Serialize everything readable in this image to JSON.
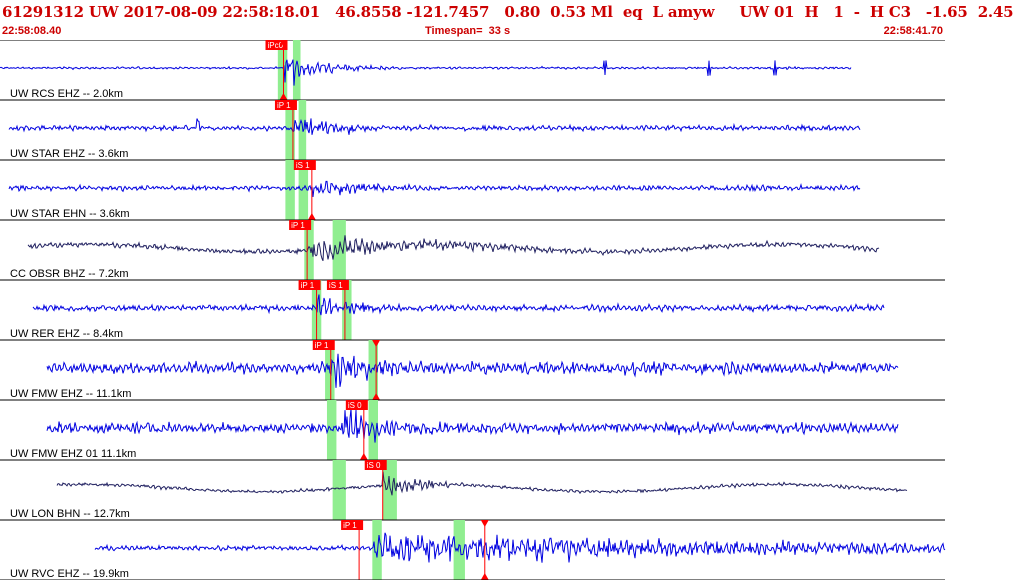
{
  "header": {
    "title": "61291312 UW 2017-08-09 22:58:18.01   46.8558 -121.7457   0.80  0.53 Ml  eq  L amyw     UW 01  H   1  -  H C3   -1.65  2.45",
    "start_time": "22:58:08.40",
    "timespan": "Timespan=  33 s",
    "end_time": "22:58:41.70"
  },
  "colors": {
    "trace_blue": "#0000e0",
    "trace_dark": "#202060",
    "pick_red": "#ff0000",
    "window_green": "#90ee90",
    "title_red": "#cc0000"
  },
  "panels": [
    {
      "label": "UW RCS EHZ -- 2.0km",
      "waveform": {
        "color": "blue",
        "start_frac": 0.0,
        "end_frac": 0.9,
        "noise": 0.05,
        "onset_frac": 0.3,
        "peak": 0.75,
        "decay": 0.05,
        "spikes": [
          0.64,
          0.75,
          0.82
        ]
      },
      "picks": [
        {
          "text": "iPc0",
          "time_frac": 0.3,
          "marker": true
        }
      ],
      "windows": [
        {
          "from_frac": 0.294,
          "to_frac": 0.304
        },
        {
          "from_frac": 0.31,
          "to_frac": 0.318
        }
      ]
    },
    {
      "label": "UW STAR EHZ -- 3.6km",
      "waveform": {
        "color": "blue",
        "start_frac": 0.01,
        "end_frac": 0.91,
        "noise": 0.12,
        "onset_frac": 0.31,
        "peak": 0.55,
        "decay": 0.07,
        "spikes": [
          0.21
        ]
      },
      "picks": [
        {
          "text": "iP 1",
          "time_frac": 0.31,
          "marker": false
        }
      ],
      "windows": [
        {
          "from_frac": 0.302,
          "to_frac": 0.312
        },
        {
          "from_frac": 0.316,
          "to_frac": 0.324
        }
      ]
    },
    {
      "label": "UW STAR EHN -- 3.6km",
      "waveform": {
        "color": "blue",
        "start_frac": 0.01,
        "end_frac": 0.91,
        "noise": 0.12,
        "onset_frac": 0.33,
        "peak": 0.5,
        "decay": 0.08,
        "spikes": []
      },
      "picks": [
        {
          "text": "iS 1",
          "time_frac": 0.33,
          "marker": true
        }
      ],
      "windows": [
        {
          "from_frac": 0.302,
          "to_frac": 0.312
        },
        {
          "from_frac": 0.316,
          "to_frac": 0.326
        }
      ]
    },
    {
      "label": "CC OBSR BHZ -- 7.2km",
      "waveform": {
        "color": "dark",
        "start_frac": 0.03,
        "end_frac": 0.93,
        "noise": 0.12,
        "onset_frac": 0.325,
        "peak": 0.55,
        "decay": 0.2,
        "spikes": []
      },
      "picks": [
        {
          "text": "iP 1",
          "time_frac": 0.325,
          "marker": false
        }
      ],
      "windows": [
        {
          "from_frac": 0.322,
          "to_frac": 0.332
        },
        {
          "from_frac": 0.352,
          "to_frac": 0.366
        }
      ]
    },
    {
      "label": "UW RER EHZ -- 8.4km",
      "waveform": {
        "color": "blue",
        "start_frac": 0.035,
        "end_frac": 0.935,
        "noise": 0.15,
        "onset_frac": 0.335,
        "peak": 0.6,
        "decay": 0.06,
        "spikes": []
      },
      "picks": [
        {
          "text": "iP 1",
          "time_frac": 0.335,
          "marker": false
        },
        {
          "text": "iS 1",
          "time_frac": 0.365,
          "marker": false
        }
      ],
      "windows": [
        {
          "from_frac": 0.33,
          "to_frac": 0.34
        },
        {
          "from_frac": 0.362,
          "to_frac": 0.372
        }
      ]
    },
    {
      "label": "UW FMW EHZ -- 11.1km",
      "waveform": {
        "color": "blue",
        "start_frac": 0.05,
        "end_frac": 0.95,
        "noise": 0.28,
        "onset_frac": 0.35,
        "peak": 0.85,
        "decay": 0.08,
        "spikes": []
      },
      "picks": [
        {
          "text": "iP 1",
          "time_frac": 0.35,
          "marker": false
        },
        {
          "text": "",
          "time_frac": 0.398,
          "marker": true
        }
      ],
      "windows": [
        {
          "from_frac": 0.344,
          "to_frac": 0.354
        },
        {
          "from_frac": 0.39,
          "to_frac": 0.4
        }
      ]
    },
    {
      "label": "UW FMW EHZ 01 11.1km",
      "waveform": {
        "color": "blue",
        "start_frac": 0.05,
        "end_frac": 0.95,
        "noise": 0.25,
        "onset_frac": 0.36,
        "peak": 0.9,
        "decay": 0.08,
        "spikes": []
      },
      "picks": [
        {
          "text": "iS 0",
          "time_frac": 0.385,
          "marker": true
        }
      ],
      "windows": [
        {
          "from_frac": 0.346,
          "to_frac": 0.356
        },
        {
          "from_frac": 0.39,
          "to_frac": 0.4
        }
      ]
    },
    {
      "label": "UW LON BHN -- 12.7km",
      "waveform": {
        "color": "dark",
        "start_frac": 0.06,
        "end_frac": 0.96,
        "noise": 0.08,
        "onset_frac": 0.405,
        "peak": 0.55,
        "decay": 0.05,
        "spikes": []
      },
      "picks": [
        {
          "text": "iS 0",
          "time_frac": 0.405,
          "marker": false
        }
      ],
      "windows": [
        {
          "from_frac": 0.352,
          "to_frac": 0.366
        },
        {
          "from_frac": 0.405,
          "to_frac": 0.42
        }
      ]
    },
    {
      "label": "UW RVC EHZ -- 19.9km",
      "waveform": {
        "color": "blue",
        "start_frac": 0.1,
        "end_frac": 1.0,
        "noise": 0.12,
        "onset_frac": 0.395,
        "peak": 0.85,
        "decay": 0.45,
        "spikes": []
      },
      "picks": [
        {
          "text": "iP 1",
          "time_frac": 0.38,
          "marker": false
        },
        {
          "text": "",
          "time_frac": 0.513,
          "marker": true
        }
      ],
      "windows": [
        {
          "from_frac": 0.394,
          "to_frac": 0.404
        },
        {
          "from_frac": 0.48,
          "to_frac": 0.492
        }
      ]
    }
  ]
}
